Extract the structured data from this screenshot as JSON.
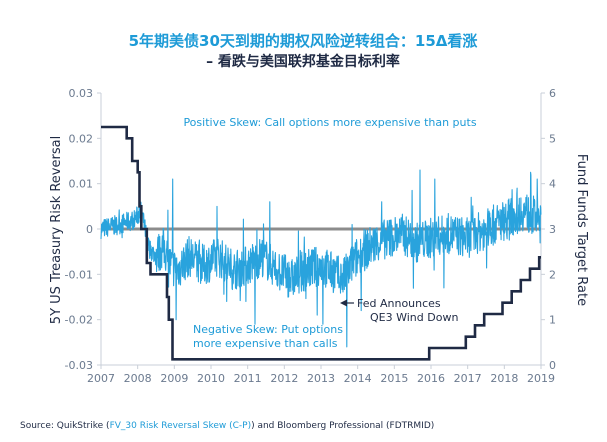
{
  "chart_data": {
    "type": "line",
    "title": "5年期美债30天到期的期权风险逆转组合：15Δ看涨",
    "subtitle": "– 看跌与美国联邦基金目标利率",
    "ylabel_left": "5Y US Treasury Risk Reversal",
    "ylabel_right": "Fund Funds Target Rate",
    "x_ticks": [
      "2007",
      "2008",
      "2009",
      "2010",
      "2011",
      "2012",
      "2013",
      "2014",
      "2015",
      "2016",
      "2017",
      "2018",
      "2019"
    ],
    "x_range": [
      2007,
      2019
    ],
    "y_left_range": [
      -0.03,
      0.03
    ],
    "y_left_ticks": [
      "0.03",
      "0.02",
      "0.01",
      "0",
      "-0.01",
      "-0.02",
      "-0.03"
    ],
    "y_right_range": [
      0,
      6
    ],
    "y_right_ticks": [
      "6",
      "5",
      "4",
      "3",
      "2",
      "1",
      "0"
    ],
    "zero_line": 0,
    "annotations": {
      "positive": "Positive Skew: Call options more expensive than puts",
      "negative_line1": "Negative Skew: Put options",
      "negative_line2": "more expensive than calls",
      "fed_line1": "Fed Announces",
      "fed_line2": "QE3 Wind Down"
    },
    "series": [
      {
        "axis": "left",
        "color": "#29a3dd",
        "anchors": [
          [
            2007.0,
            0.0
          ],
          [
            2007.5,
            0.001
          ],
          [
            2007.9,
            0.002
          ],
          [
            2008.1,
            0.004
          ],
          [
            2008.3,
            -0.004
          ],
          [
            2008.5,
            -0.006
          ],
          [
            2008.7,
            -0.004
          ],
          [
            2008.9,
            -0.008
          ],
          [
            2009.1,
            -0.009
          ],
          [
            2009.4,
            -0.006
          ],
          [
            2009.8,
            -0.008
          ],
          [
            2010.2,
            -0.006
          ],
          [
            2010.6,
            -0.009
          ],
          [
            2011.0,
            -0.008
          ],
          [
            2011.4,
            -0.006
          ],
          [
            2011.8,
            -0.009
          ],
          [
            2012.2,
            -0.011
          ],
          [
            2012.6,
            -0.009
          ],
          [
            2013.0,
            -0.008
          ],
          [
            2013.4,
            -0.01
          ],
          [
            2013.6,
            -0.011
          ],
          [
            2013.9,
            -0.007
          ],
          [
            2014.3,
            -0.004
          ],
          [
            2014.8,
            -0.002
          ],
          [
            2015.2,
            -0.001
          ],
          [
            2015.6,
            -0.003
          ],
          [
            2016.0,
            -0.002
          ],
          [
            2016.5,
            -0.001
          ],
          [
            2017.0,
            -0.002
          ],
          [
            2017.5,
            0.0
          ],
          [
            2018.0,
            0.002
          ],
          [
            2018.5,
            0.004
          ],
          [
            2019.0,
            0.002
          ]
        ],
        "spikes": [
          [
            2008.05,
            0.012
          ],
          [
            2008.95,
            0.011
          ],
          [
            2009.05,
            -0.02
          ],
          [
            2010.95,
            -0.016
          ],
          [
            2011.2,
            -0.021
          ],
          [
            2011.6,
            0.006
          ],
          [
            2012.9,
            -0.019
          ],
          [
            2013.05,
            -0.021
          ],
          [
            2013.7,
            -0.026
          ],
          [
            2013.85,
            0.001
          ],
          [
            2014.1,
            -0.018
          ],
          [
            2014.65,
            0.006
          ],
          [
            2015.7,
            0.013
          ],
          [
            2016.1,
            0.011
          ],
          [
            2016.35,
            -0.013
          ],
          [
            2017.1,
            0.007
          ],
          [
            2017.45,
            -0.004
          ],
          [
            2018.35,
            0.009
          ],
          [
            2018.9,
            0.011
          ]
        ]
      },
      {
        "axis": "right",
        "color": "#1f2a44",
        "steps": [
          [
            2007.0,
            5.25
          ],
          [
            2007.7,
            5.0
          ],
          [
            2007.85,
            4.5
          ],
          [
            2008.0,
            4.25
          ],
          [
            2008.05,
            3.5
          ],
          [
            2008.1,
            3.0
          ],
          [
            2008.25,
            2.25
          ],
          [
            2008.35,
            2.0
          ],
          [
            2008.8,
            1.5
          ],
          [
            2008.85,
            1.0
          ],
          [
            2008.95,
            0.125
          ],
          [
            2015.95,
            0.375
          ],
          [
            2016.95,
            0.625
          ],
          [
            2017.2,
            0.875
          ],
          [
            2017.45,
            1.125
          ],
          [
            2017.95,
            1.375
          ],
          [
            2018.2,
            1.625
          ],
          [
            2018.45,
            1.875
          ],
          [
            2018.7,
            2.125
          ],
          [
            2018.95,
            2.375
          ],
          [
            2019.0,
            2.375
          ]
        ]
      }
    ],
    "source": {
      "prefix": "Source: QuikStrike (",
      "link": "FV_30 Risk Reversal Skew (C-P)",
      "suffix": ") and Bloomberg Professional (FDTRMID)"
    }
  }
}
